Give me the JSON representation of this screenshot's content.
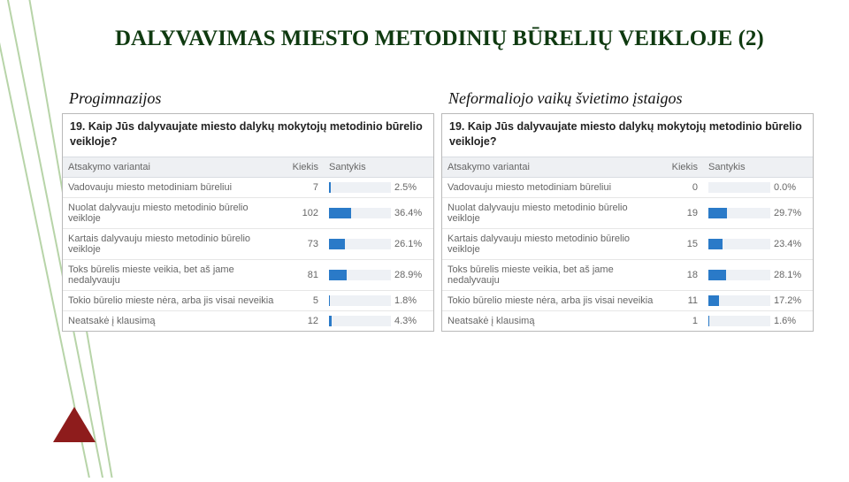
{
  "slide": {
    "title": "DALYVAVIMAS MIESTO METODINIŲ BŪRELIŲ VEIKLOJE (2)"
  },
  "decor": {
    "line_color": "#b7d4a8",
    "accent_color": "#8e1c1c"
  },
  "panels": {
    "question_number": "19.",
    "question_text": "Kaip Jūs dalyvaujate miesto dalykų mokytojų metodinio būrelio veikloje?",
    "headers": {
      "variant": "Atsakymo variantai",
      "count": "Kiekis",
      "ratio": "Santykis"
    },
    "row_labels": [
      "Vadovauju miesto metodiniam būreliui",
      "Nuolat dalyvauju miesto metodinio būrelio veikloje",
      "Kartais dalyvauju miesto metodinio būrelio veikloje",
      "Toks būrelis mieste veikia, bet aš jame nedalyvauju",
      "Tokio būrelio mieste nėra, arba jis visai neveikia",
      "Neatsakė į klausimą"
    ],
    "left": {
      "label": "Progimnazijos",
      "counts": [
        7,
        102,
        73,
        81,
        5,
        12
      ],
      "percents": [
        "2.5%",
        "36.4%",
        "26.1%",
        "28.9%",
        "1.8%",
        "4.3%"
      ],
      "percent_vals": [
        2.5,
        36.4,
        26.1,
        28.9,
        1.8,
        4.3
      ]
    },
    "right": {
      "label": "Neformaliojo vaikų švietimo įstaigos",
      "counts": [
        0,
        19,
        15,
        18,
        11,
        1
      ],
      "percents": [
        "0.0%",
        "29.7%",
        "23.4%",
        "28.1%",
        "17.2%",
        "1.6%"
      ],
      "percent_vals": [
        0.0,
        29.7,
        23.4,
        28.1,
        17.2,
        1.6
      ]
    },
    "bar_color": "#2a7ac8",
    "bar_track_color": "#eef1f5",
    "header_bg": "#eef0f3",
    "row_border": "#e6e6e6",
    "panel_border": "#b9b9b9",
    "text_muted": "#666666"
  }
}
